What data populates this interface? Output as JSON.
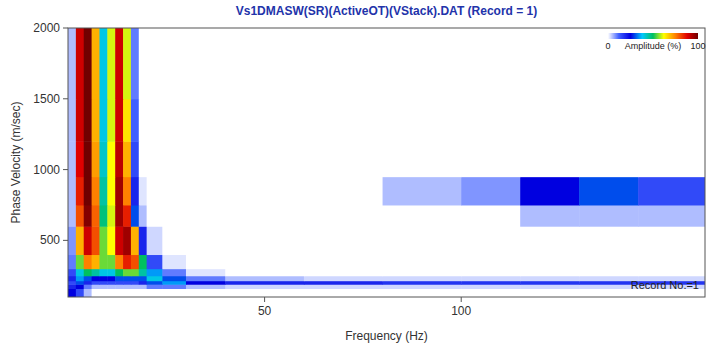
{
  "chart_data": {
    "type": "heatmap",
    "title": "Vs1DMASW(SR)(ActiveOT)(VStack).DAT (Record = 1)",
    "x_label": "Frequency (Hz)",
    "y_label": "Phase Velocity (m/sec)",
    "annotation": "Record No.=1",
    "xlim": [
      0,
      162
    ],
    "ylim": [
      100,
      2000
    ],
    "xticks": [
      50,
      100
    ],
    "yticks": [
      500,
      1000,
      1500,
      2000
    ],
    "grid": false,
    "x_edges": [
      0,
      2,
      4,
      6,
      8,
      10,
      12,
      14,
      16,
      18,
      20,
      24,
      30,
      40,
      60,
      80,
      100,
      115,
      130,
      145,
      162
    ],
    "y_edges": [
      100,
      160,
      190,
      215,
      250,
      300,
      400,
      600,
      750,
      950,
      1200,
      1500,
      2000
    ],
    "cells": [
      [
        25,
        15,
        5,
        0,
        0,
        0,
        0,
        0,
        0,
        0,
        0,
        0,
        0,
        0,
        0,
        0,
        0,
        0,
        0,
        0
      ],
      [
        20,
        25,
        10,
        5,
        5,
        5,
        5,
        5,
        5,
        5,
        10,
        10,
        5,
        3,
        3,
        3,
        3,
        3,
        3,
        3
      ],
      [
        15,
        30,
        20,
        15,
        15,
        15,
        15,
        15,
        15,
        20,
        30,
        35,
        25,
        20,
        20,
        18,
        18,
        18,
        18,
        18
      ],
      [
        20,
        35,
        30,
        25,
        25,
        25,
        30,
        30,
        30,
        30,
        40,
        30,
        10,
        5,
        3,
        3,
        3,
        3,
        3,
        3
      ],
      [
        15,
        40,
        50,
        45,
        40,
        40,
        50,
        55,
        55,
        45,
        35,
        10,
        2,
        0,
        0,
        0,
        0,
        0,
        0,
        0
      ],
      [
        10,
        55,
        75,
        70,
        55,
        55,
        75,
        85,
        80,
        50,
        15,
        2,
        0,
        0,
        0,
        0,
        0,
        0,
        0,
        0
      ],
      [
        8,
        70,
        90,
        80,
        55,
        62,
        90,
        95,
        70,
        20,
        3,
        0,
        0,
        0,
        0,
        0,
        0,
        0,
        0,
        0
      ],
      [
        5,
        80,
        98,
        78,
        48,
        60,
        95,
        85,
        30,
        5,
        0,
        0,
        0,
        0,
        0,
        0,
        0,
        5,
        5,
        5
      ],
      [
        5,
        85,
        100,
        75,
        45,
        62,
        95,
        75,
        20,
        2,
        0,
        0,
        0,
        0,
        0,
        5,
        8,
        25,
        30,
        15
      ],
      [
        5,
        88,
        100,
        72,
        42,
        62,
        92,
        70,
        15,
        0,
        0,
        0,
        0,
        0,
        0,
        0,
        0,
        0,
        0,
        0
      ],
      [
        5,
        90,
        100,
        70,
        40,
        60,
        90,
        65,
        12,
        0,
        0,
        0,
        0,
        0,
        0,
        0,
        0,
        0,
        0,
        0
      ],
      [
        5,
        90,
        100,
        70,
        40,
        60,
        90,
        60,
        10,
        0,
        0,
        0,
        0,
        0,
        0,
        0,
        0,
        0,
        0,
        0
      ]
    ],
    "colorbar": {
      "label": "Amplitude (%)",
      "range": [
        0,
        100
      ],
      "ticks": [
        0,
        100
      ]
    }
  }
}
